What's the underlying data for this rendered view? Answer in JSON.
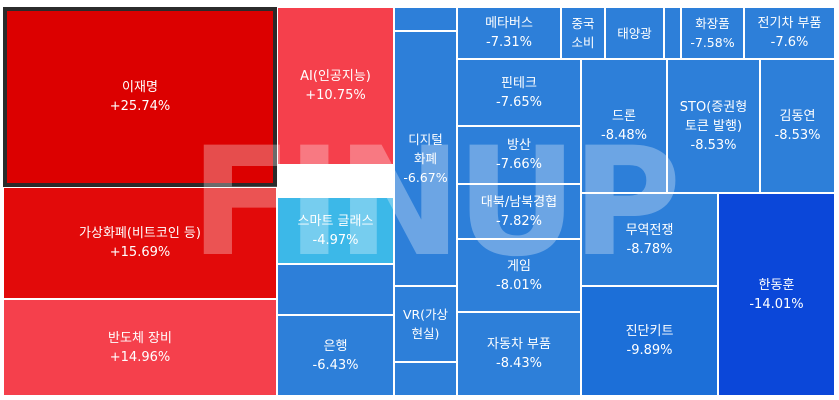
{
  "watermark": "FINUP",
  "colors": {
    "red_dark": "#dc0000",
    "red_mid": "#e41a1c",
    "red_light": "#f5404c",
    "cyan": "#3cb8e8",
    "blue": "#2d7fd9",
    "blue_mid": "#1c6fd8",
    "blue_dark": "#0b47d9"
  },
  "tiles": [
    {
      "name": "이재명",
      "change": "+25.74%",
      "color": "#dc0000",
      "selected": true
    },
    {
      "name": "가상화폐(비트코인 등)",
      "change": "+15.69%",
      "color": "#e20a0a"
    },
    {
      "name": "반도체 장비",
      "change": "+14.96%",
      "color": "#f5404c"
    },
    {
      "name": "AI(인공지능)",
      "change": "+10.75%",
      "color": "#f5404c"
    },
    {
      "name": "스마트 글래스",
      "change": "-4.97%",
      "color": "#3cb8e8"
    },
    {
      "name": "",
      "change": "",
      "color": "#2d7fd9"
    },
    {
      "name": "은행",
      "change": "-6.43%",
      "color": "#2d7fd9"
    },
    {
      "name": "",
      "change": "",
      "color": "#2d7fd9"
    },
    {
      "name": "디지털\n화폐",
      "change": "-6.67%",
      "color": "#2d7fd9"
    },
    {
      "name": "VR(가상\n현실)",
      "change": "",
      "color": "#2d7fd9"
    },
    {
      "name": "",
      "change": "",
      "color": "#2d7fd9"
    },
    {
      "name": "메타버스",
      "change": "-7.31%",
      "color": "#2d7fd9"
    },
    {
      "name": "중국\n소비",
      "change": "",
      "color": "#2d7fd9"
    },
    {
      "name": "태양광",
      "change": "",
      "color": "#2d7fd9"
    },
    {
      "name": "",
      "change": "",
      "color": "#2d7fd9"
    },
    {
      "name": "화장품",
      "change": "-7.58%",
      "color": "#2d7fd9"
    },
    {
      "name": "전기차 부품",
      "change": "-7.6%",
      "color": "#2d7fd9"
    },
    {
      "name": "핀테크",
      "change": "-7.65%",
      "color": "#2d7fd9"
    },
    {
      "name": "방산",
      "change": "-7.66%",
      "color": "#2d7fd9"
    },
    {
      "name": "대북/남북경협",
      "change": "-7.82%",
      "color": "#2d7fd9"
    },
    {
      "name": "게임",
      "change": "-8.01%",
      "color": "#2d7fd9"
    },
    {
      "name": "자동차 부품",
      "change": "-8.43%",
      "color": "#2d7fd9"
    },
    {
      "name": "드론",
      "change": "-8.48%",
      "color": "#2d7fd9"
    },
    {
      "name": "STO(증권형\n토큰 발행)",
      "change": "-8.53%",
      "color": "#2d7fd9"
    },
    {
      "name": "김동연",
      "change": "-8.53%",
      "color": "#2d7fd9"
    },
    {
      "name": "무역전쟁",
      "change": "-8.78%",
      "color": "#2d7fd9"
    },
    {
      "name": "진단키트",
      "change": "-9.89%",
      "color": "#1c6fd8"
    },
    {
      "name": "한동훈",
      "change": "-14.01%",
      "color": "#0b47d9"
    }
  ]
}
